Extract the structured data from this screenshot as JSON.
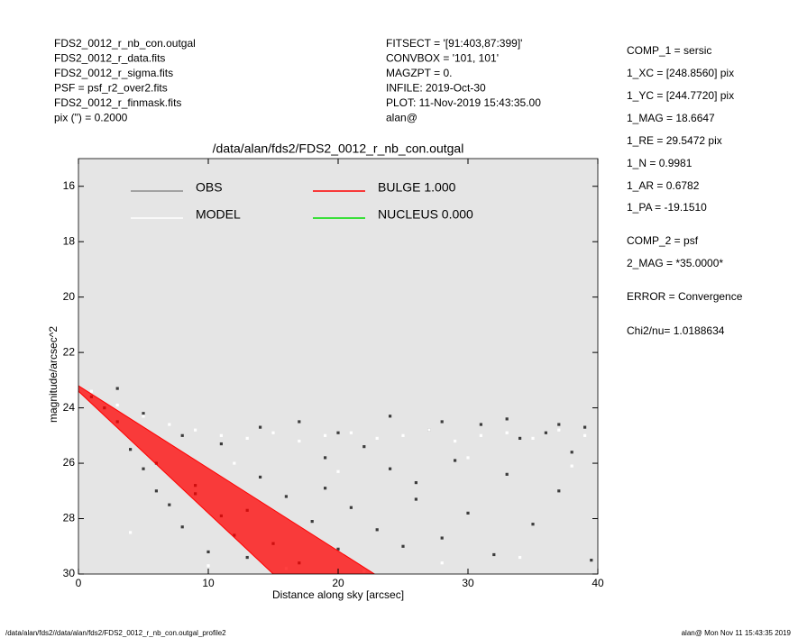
{
  "header": {
    "left": [
      "FDS2_0012_r_nb_con.outgal",
      "FDS2_0012_r_data.fits",
      "FDS2_0012_r_sigma.fits",
      "PSF    = psf_r2_over2.fits",
      "FDS2_0012_r_finmask.fits",
      "pix (\") =  0.2000"
    ],
    "middle": [
      "FITSECT = '[91:403,87:399]'",
      "CONVBOX = '101, 101'",
      "MAGZPT =              0.",
      "INFILE: 2019-Oct-30",
      "PLOT: 11-Nov-2019 15:43:35.00",
      "alan@"
    ]
  },
  "params": [
    "COMP_1  = sersic",
    "1_XC    = [248.8560] pix",
    "1_YC    = [244.7720] pix",
    "1_MAG   = 18.6647",
    "1_RE    = 29.5472 pix",
    "1_N     = 0.9981",
    "1_AR    = 0.6782",
    "1_PA    = -19.1510",
    "COMP_2  = psf",
    "2_MAG   = *35.0000*",
    "ERROR   = Convergence",
    "Chi2/nu=       1.0188634"
  ],
  "footer": {
    "left": "/data/alan/fds2//data/alan/fds2/FDS2_0012_r_nb_con.outgal_profile2",
    "right": "alan@  Mon Nov 11 15:43:35 2019"
  },
  "chart_data": {
    "type": "scatter",
    "title": "/data/alan/fds2/FDS2_0012_r_nb_con.outgal",
    "x_label": "Distance along sky [arcsec]",
    "y_label": "magnitude/arcsec^2",
    "xlim": [
      0,
      40
    ],
    "ylim": [
      30,
      15
    ],
    "xticks": [
      0,
      10,
      20,
      30,
      40
    ],
    "yticks": [
      16,
      18,
      20,
      22,
      24,
      26,
      28,
      30
    ],
    "background": "#e5e5e5",
    "series": [
      {
        "name": "OBS",
        "color": "#8c8c8c",
        "marker_color": "#3c3c3c",
        "style": "points",
        "x": [
          1,
          2,
          3,
          4,
          5,
          6,
          7,
          8,
          9,
          10,
          11,
          12,
          13,
          14,
          15,
          16,
          17,
          18,
          19,
          20,
          21,
          22,
          23,
          24,
          25,
          26,
          27,
          28,
          29,
          30,
          31,
          32,
          33,
          34,
          35,
          36,
          37,
          38,
          39,
          39.5,
          3,
          5,
          8,
          11,
          14,
          17,
          20,
          24,
          28,
          33,
          37,
          6,
          9,
          13,
          19,
          26
        ],
        "values": [
          23.6,
          24.0,
          24.5,
          25.5,
          26.2,
          27.0,
          27.5,
          28.3,
          26.8,
          29.2,
          27.9,
          28.6,
          29.4,
          26.5,
          28.9,
          27.2,
          29.6,
          28.1,
          26.9,
          29.1,
          27.6,
          25.4,
          28.4,
          26.2,
          29.0,
          27.3,
          24.8,
          28.7,
          25.9,
          27.8,
          24.6,
          29.3,
          26.4,
          25.1,
          28.2,
          24.9,
          27.0,
          25.6,
          24.7,
          29.5,
          23.3,
          24.2,
          25.0,
          25.3,
          24.7,
          24.5,
          24.9,
          24.3,
          24.5,
          24.4,
          24.6,
          26.0,
          27.1,
          27.7,
          25.8,
          26.7
        ]
      },
      {
        "name": "MODEL",
        "color": "#ffffff",
        "marker_color": "#ffffff",
        "style": "points",
        "x": [
          1,
          3,
          5,
          7,
          9,
          11,
          13,
          15,
          17,
          19,
          21,
          23,
          25,
          27,
          29,
          31,
          33,
          35,
          37,
          39,
          4,
          10,
          16,
          22,
          28,
          34,
          12,
          20,
          30,
          38
        ],
        "values": [
          23.4,
          23.9,
          24.3,
          24.6,
          24.8,
          25.0,
          25.1,
          24.9,
          25.2,
          25.0,
          24.9,
          25.1,
          25.0,
          24.8,
          25.2,
          25.0,
          24.9,
          25.1,
          24.8,
          25.0,
          28.5,
          29.7,
          29.8,
          29.9,
          29.6,
          29.4,
          26.0,
          26.3,
          25.8,
          26.1
        ]
      },
      {
        "name": "BULGE  1.000",
        "color": "#ff0000",
        "style": "polygon",
        "x": [
          0,
          22.8,
          15,
          0
        ],
        "values": [
          23.2,
          30,
          30,
          23.4
        ]
      },
      {
        "name": "NUCLEUS  0.000",
        "color": "#00dd00",
        "style": "points",
        "x": [],
        "values": []
      }
    ]
  }
}
